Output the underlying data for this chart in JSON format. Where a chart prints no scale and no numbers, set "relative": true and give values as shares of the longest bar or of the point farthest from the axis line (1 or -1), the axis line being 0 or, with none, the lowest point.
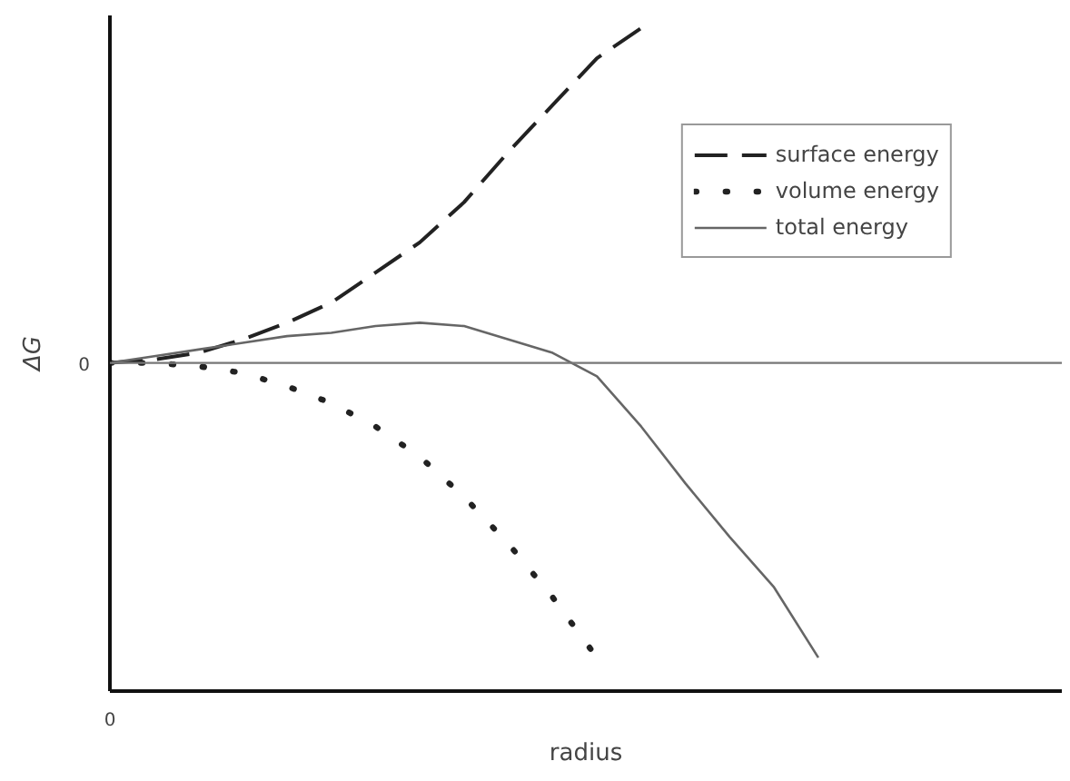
{
  "chart_data": {
    "type": "line",
    "relative": true,
    "xlabel": "radius",
    "ylabel": "ΔG",
    "annotations": [
      "0"
    ],
    "legend": "top right",
    "ref_lines": [
      {
        "axis": "y",
        "value": 0,
        "label": "0",
        "color": "#777777"
      }
    ],
    "categories": [
      null,
      null,
      null,
      null,
      null,
      null,
      null,
      null,
      null,
      null,
      null,
      null,
      null,
      null,
      null,
      null,
      null,
      null,
      null,
      null,
      null,
      null
    ],
    "series": [
      {
        "name": "surface energy",
        "color": "#222222",
        "line_style": "dashed",
        "values": [
          0,
          0.01,
          0.03,
          0.07,
          0.12,
          0.18,
          0.27,
          0.36,
          0.48,
          0.63,
          0.77,
          0.91,
          1.0,
          null,
          null,
          null,
          null,
          null,
          null,
          null,
          null,
          null
        ]
      },
      {
        "name": "volume energy",
        "color": "#222222",
        "line_style": "dotted",
        "values": [
          0,
          0,
          -0.01,
          -0.03,
          -0.07,
          -0.12,
          -0.19,
          -0.28,
          -0.4,
          -0.54,
          -0.7,
          -0.88,
          null,
          null,
          null,
          null,
          null,
          null,
          null,
          null,
          null,
          null
        ]
      },
      {
        "name": "total energy",
        "color": "#666666",
        "line_style": "solid",
        "values": [
          0,
          0.02,
          0.04,
          0.06,
          0.08,
          0.09,
          0.11,
          0.12,
          0.11,
          0.07,
          0.03,
          -0.04,
          -0.19,
          -0.36,
          -0.52,
          -0.67,
          -0.88,
          null,
          null,
          null,
          null,
          null
        ]
      }
    ]
  }
}
